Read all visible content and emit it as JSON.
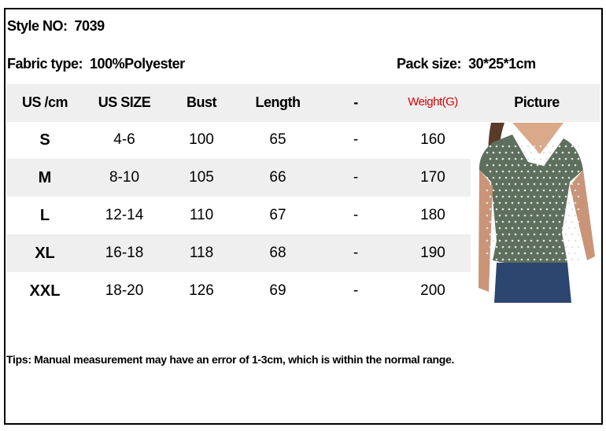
{
  "style_label": "Style NO:",
  "style_value": "7039",
  "fabric_label": "Fabric type:",
  "fabric_value": "100%Polyester",
  "pack_label": "Pack size:",
  "pack_value": "30*25*1cm",
  "headers": [
    "US /cm",
    "US SIZE",
    "Bust",
    "Length",
    "-",
    "Weight(G)",
    "Picture"
  ],
  "weight_header_color": "#d40000",
  "rows": [
    [
      "S",
      "4-6",
      "100",
      "65",
      "-",
      "160"
    ],
    [
      "M",
      "8-10",
      "105",
      "66",
      "-",
      "170"
    ],
    [
      "L",
      "12-14",
      "110",
      "67",
      "-",
      "180"
    ],
    [
      "XL",
      "16-18",
      "118",
      "68",
      "-",
      "190"
    ],
    [
      "XXL",
      "18-20",
      "126",
      "69",
      "-",
      "200"
    ]
  ],
  "tips": "Tips: Manual measurement may have an error of 1-3cm, which is within the normal range.",
  "picture_icon": "woman-wearing-green-floral-blouse-photo"
}
